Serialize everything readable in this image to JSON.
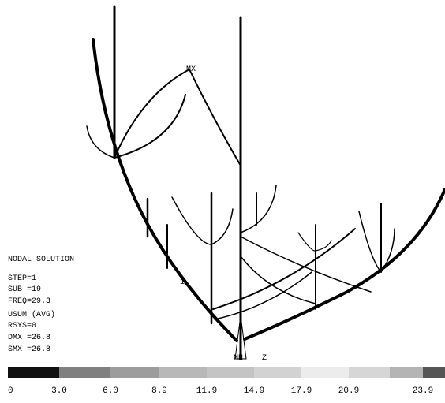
{
  "info": {
    "lines": [
      "NODAL SOLUTION",
      "STEP=1",
      "SUB =19",
      "FREQ=29.3",
      "USUM      (AVG)",
      "RSYS=0",
      "DMX =26.8",
      "SMX =26.8"
    ]
  },
  "markers": {
    "max": "MX",
    "min": "MN",
    "axis": "Z",
    "node": "1"
  },
  "legend": {
    "labels": [
      "0",
      "3.0",
      "6.0",
      "8.9",
      "11.9",
      "14.9",
      "17.9",
      "20.9",
      "23.9"
    ]
  }
}
